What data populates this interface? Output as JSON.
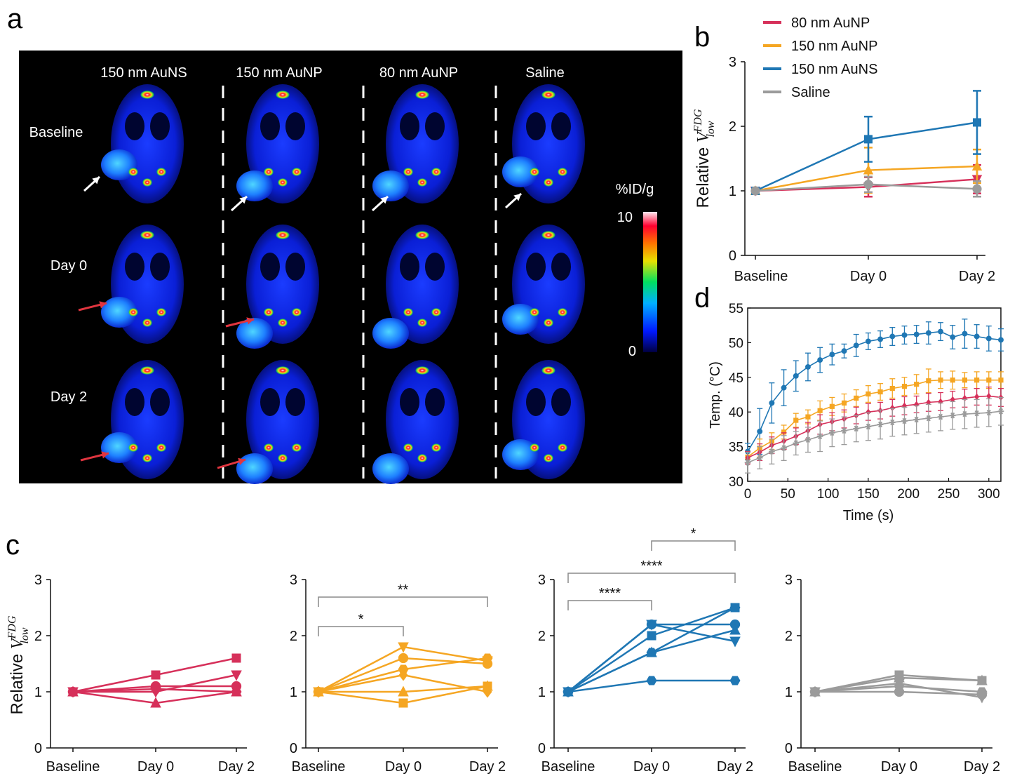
{
  "panel_labels": {
    "a": "a",
    "b": "b",
    "c": "c",
    "d": "d"
  },
  "colors": {
    "red": "#d6305a",
    "orange": "#f5a623",
    "blue": "#1f77b4",
    "gray": "#9b9b9b",
    "dash": "#ffffff",
    "ann_arrow_white": "#ffffff",
    "ann_arrow_red": "#e0353f"
  },
  "panel_a": {
    "columns": [
      "150 nm AuNS",
      "150 nm AuNP",
      "80 nm AuNP",
      "Saline"
    ],
    "rows": [
      "Baseline",
      "Day 0",
      "Day 2"
    ],
    "colorbar": {
      "title": "%ID/g",
      "max": "10",
      "min": "0"
    },
    "icons": [
      "mouse-pet-scan-image",
      "arrow-annotation-icon"
    ]
  },
  "chart_data": [
    {
      "id": "b",
      "type": "line",
      "title": "",
      "ylabel_prefix": "Relative ",
      "ylabel_math_base": "V",
      "ylabel_math_sup": "FDG",
      "ylabel_math_sub": "low",
      "xlabel": "",
      "categories": [
        "Baseline",
        "Day 0",
        "Day 2"
      ],
      "ylim": [
        0,
        3
      ],
      "yticks": [
        "0",
        "1",
        "2",
        "3"
      ],
      "legend_position": "top-left (outside, above plot)",
      "series": [
        {
          "name": "80 nm AuNP",
          "color": "#d6305a",
          "marker": "down-triangle",
          "values": [
            1.0,
            1.06,
            1.18
          ],
          "err": [
            0,
            0.15,
            0.22
          ]
        },
        {
          "name": "150 nm AuNP",
          "color": "#f5a623",
          "marker": "triangle",
          "values": [
            1.0,
            1.32,
            1.38
          ],
          "err": [
            0,
            0.35,
            0.26
          ]
        },
        {
          "name": "150 nm AuNS",
          "color": "#1f77b4",
          "marker": "square",
          "values": [
            1.0,
            1.8,
            2.06
          ],
          "err": [
            0,
            0.35,
            0.49
          ]
        },
        {
          "name": "Saline",
          "color": "#9b9b9b",
          "marker": "circle",
          "values": [
            1.0,
            1.1,
            1.03
          ],
          "err": [
            0,
            0.12,
            0.12
          ]
        }
      ]
    },
    {
      "id": "d",
      "type": "line",
      "title": "",
      "xlabel": "Time (s)",
      "ylabel": "Temp. (°C)",
      "xlim": [
        0,
        315
      ],
      "ylim": [
        30,
        55
      ],
      "xticks": [
        "0",
        "50",
        "100",
        "150",
        "200",
        "250",
        "300"
      ],
      "yticks": [
        "30",
        "35",
        "40",
        "45",
        "50",
        "55"
      ],
      "x": [
        0,
        15,
        30,
        45,
        60,
        75,
        90,
        105,
        120,
        135,
        150,
        165,
        180,
        195,
        210,
        225,
        240,
        255,
        270,
        285,
        300,
        315
      ],
      "series": [
        {
          "name": "150 nm AuNS",
          "color": "#1f77b4",
          "marker": "circle",
          "values": [
            34.3,
            37.2,
            41.3,
            43.5,
            45.2,
            46.5,
            47.5,
            48.3,
            48.8,
            49.6,
            50.2,
            50.5,
            50.9,
            51.1,
            51.2,
            51.4,
            51.6,
            50.8,
            51.3,
            50.9,
            50.6,
            50.4
          ],
          "err": [
            1.2,
            3.3,
            2.9,
            2.6,
            2.2,
            2.0,
            1.8,
            1.5,
            1.0,
            1.6,
            1.2,
            1.2,
            1.3,
            1.3,
            1.3,
            1.6,
            1.3,
            1.7,
            2.1,
            1.7,
            1.8,
            1.6
          ]
        },
        {
          "name": "150 nm AuNP",
          "color": "#f5a623",
          "marker": "square",
          "values": [
            33.5,
            34.8,
            35.8,
            37.1,
            38.8,
            39.3,
            40.2,
            40.8,
            41.3,
            42.0,
            42.6,
            42.9,
            43.4,
            43.7,
            44.0,
            44.5,
            44.6,
            44.6,
            44.6,
            44.6,
            44.6,
            44.6
          ],
          "err": [
            0.8,
            1.3,
            1.2,
            1.0,
            1.0,
            1.0,
            1.4,
            1.3,
            1.3,
            1.2,
            1.2,
            1.2,
            1.4,
            1.3,
            1.4,
            1.7,
            1.2,
            1.3,
            1.1,
            1.2,
            1.2,
            1.2
          ]
        },
        {
          "name": "80 nm AuNP",
          "color": "#d6305a",
          "marker": "diamond",
          "values": [
            33.4,
            34.2,
            35.2,
            35.8,
            36.5,
            37.3,
            38.2,
            38.6,
            39.0,
            39.5,
            40.0,
            40.2,
            40.6,
            40.9,
            41.1,
            41.4,
            41.5,
            41.8,
            42.0,
            42.2,
            42.3,
            42.1
          ],
          "err": [
            0.9,
            1.2,
            1.2,
            1.2,
            1.2,
            1.2,
            1.4,
            1.3,
            1.3,
            1.2,
            1.2,
            1.2,
            1.2,
            1.3,
            1.2,
            1.3,
            1.3,
            1.2,
            1.3,
            1.2,
            1.3,
            1.3
          ]
        },
        {
          "name": "Saline",
          "color": "#9b9b9b",
          "marker": "star",
          "values": [
            32.7,
            33.4,
            34.3,
            34.8,
            35.5,
            36.0,
            36.5,
            37.0,
            37.3,
            37.6,
            37.9,
            38.2,
            38.5,
            38.7,
            38.9,
            39.1,
            39.3,
            39.5,
            39.7,
            39.8,
            39.9,
            40.1
          ],
          "err": [
            1.5,
            1.6,
            1.8,
            1.8,
            1.7,
            1.8,
            2.2,
            2.0,
            2.0,
            1.9,
            2.0,
            2.1,
            2.0,
            2.0,
            2.0,
            2.0,
            2.0,
            2.0,
            2.1,
            2.0,
            2.0,
            2.0
          ]
        }
      ]
    },
    {
      "id": "c1",
      "type": "line",
      "group": "80 nm AuNP",
      "color": "#d6305a",
      "ylabel_prefix": "Relative ",
      "ylabel_math_base": "V",
      "ylabel_math_sup": "FDG",
      "ylabel_math_sub": "low",
      "categories": [
        "Baseline",
        "Day 0",
        "Day 2"
      ],
      "ylim": [
        0,
        3
      ],
      "yticks": [
        "0",
        "1",
        "2",
        "3"
      ],
      "series": [
        {
          "marker": "square",
          "values": [
            1.0,
            1.3,
            1.6
          ]
        },
        {
          "marker": "down-triangle",
          "values": [
            1.0,
            1.0,
            1.3
          ]
        },
        {
          "marker": "circle",
          "values": [
            1.0,
            1.1,
            1.1
          ]
        },
        {
          "marker": "triangle",
          "values": [
            1.0,
            0.8,
            1.0
          ]
        },
        {
          "marker": "hexagon",
          "values": [
            1.0,
            1.05,
            1.0
          ]
        }
      ],
      "significance": []
    },
    {
      "id": "c2",
      "type": "line",
      "group": "150 nm AuNP",
      "color": "#f5a623",
      "categories": [
        "Baseline",
        "Day 0",
        "Day 2"
      ],
      "ylim": [
        0,
        3
      ],
      "yticks": [
        "0",
        "1",
        "2",
        "3"
      ],
      "series": [
        {
          "marker": "down-triangle",
          "values": [
            1.0,
            1.8,
            1.55
          ]
        },
        {
          "marker": "circle",
          "values": [
            1.0,
            1.6,
            1.5
          ]
        },
        {
          "marker": "hexagon",
          "values": [
            1.0,
            1.4,
            1.6
          ]
        },
        {
          "marker": "triangle",
          "values": [
            1.0,
            1.0,
            1.1
          ]
        },
        {
          "marker": "square",
          "values": [
            1.0,
            0.8,
            1.1
          ]
        },
        {
          "marker": "diamond",
          "values": [
            1.0,
            1.3,
            1.0
          ]
        }
      ],
      "significance": [
        {
          "from": 0,
          "to": 2,
          "label": "**",
          "level": 1
        },
        {
          "from": 0,
          "to": 1,
          "label": "*",
          "level": 0
        }
      ]
    },
    {
      "id": "c3",
      "type": "line",
      "group": "150 nm AuNS",
      "color": "#1f77b4",
      "categories": [
        "Baseline",
        "Day 0",
        "Day 2"
      ],
      "ylim": [
        0,
        3
      ],
      "yticks": [
        "0",
        "1",
        "2",
        "3"
      ],
      "series": [
        {
          "marker": "circle",
          "values": [
            1.0,
            2.2,
            2.2
          ]
        },
        {
          "marker": "square",
          "values": [
            1.0,
            2.0,
            2.5
          ]
        },
        {
          "marker": "hexagon",
          "values": [
            1.0,
            1.7,
            2.5
          ]
        },
        {
          "marker": "triangle",
          "values": [
            1.0,
            1.7,
            2.1
          ]
        },
        {
          "marker": "down-triangle",
          "values": [
            1.0,
            2.2,
            1.9
          ]
        },
        {
          "marker": "hexagon",
          "values": [
            1.0,
            1.2,
            1.2
          ]
        }
      ],
      "significance": [
        {
          "from": 1,
          "to": 2,
          "label": "*",
          "level": 2
        },
        {
          "from": 0,
          "to": 2,
          "label": "****",
          "level": 1
        },
        {
          "from": 0,
          "to": 1,
          "label": "****",
          "level": 0
        }
      ]
    },
    {
      "id": "c4",
      "type": "line",
      "group": "Saline",
      "color": "#9b9b9b",
      "categories": [
        "Baseline",
        "Day 0",
        "Day 2"
      ],
      "ylim": [
        0,
        3
      ],
      "yticks": [
        "0",
        "1",
        "2",
        "3"
      ],
      "series": [
        {
          "marker": "square",
          "values": [
            1.0,
            1.3,
            1.2
          ]
        },
        {
          "marker": "triangle",
          "values": [
            1.0,
            1.25,
            1.2
          ]
        },
        {
          "marker": "hexagon",
          "values": [
            1.0,
            1.1,
            1.0
          ]
        },
        {
          "marker": "circle",
          "values": [
            1.0,
            1.0,
            0.95
          ]
        },
        {
          "marker": "down-triangle",
          "values": [
            1.0,
            1.15,
            0.9
          ]
        }
      ],
      "significance": []
    }
  ]
}
